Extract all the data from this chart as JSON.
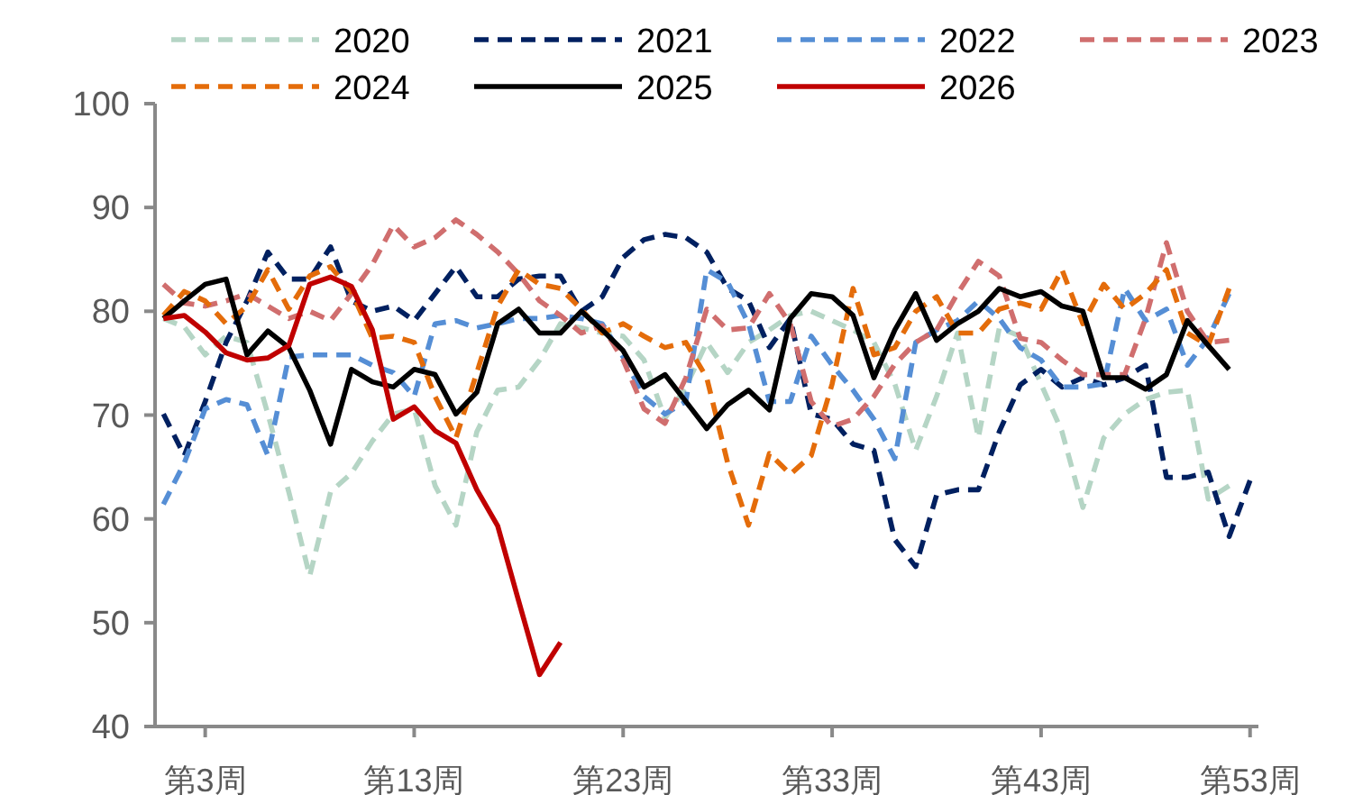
{
  "chart_data": {
    "type": "line",
    "categories": [
      null,
      null,
      "第3周",
      null,
      null,
      null,
      null,
      null,
      null,
      null,
      null,
      null,
      "第13周",
      null,
      null,
      null,
      null,
      null,
      null,
      null,
      null,
      null,
      "第23周",
      null,
      null,
      null,
      null,
      null,
      null,
      null,
      null,
      null,
      "第33周",
      null,
      null,
      null,
      null,
      null,
      null,
      null,
      null,
      null,
      "第43周",
      null,
      null,
      null,
      null,
      null,
      null,
      null,
      null,
      null,
      "第53周"
    ],
    "ylim": [
      40,
      100
    ],
    "yticks": [
      40,
      50,
      60,
      70,
      80,
      90,
      100
    ],
    "legend": "top",
    "series": [
      {
        "name": "2020",
        "color": "#b5d5c5",
        "line_style": "dashed",
        "values": [
          79.3,
          78.5,
          75.8,
          77.6,
          77.0,
          70.1,
          62.6,
          54.5,
          62.6,
          64.4,
          67.5,
          70.1,
          70.6,
          63.2,
          59.4,
          68.4,
          72.4,
          72.7,
          75.3,
          78.8,
          78.4,
          77.9,
          77.6,
          75.3,
          69.7,
          72.7,
          77.0,
          74.1,
          77.0,
          78.2,
          79.6,
          80.0,
          79.1,
          78.2,
          77.0,
          73.0,
          66.6,
          71.8,
          77.9,
          67.8,
          78.4,
          77.6,
          73.0,
          68.4,
          61.1,
          67.8,
          70.1,
          71.5,
          72.2,
          72.4,
          61.9,
          63.2,
          null
        ]
      },
      {
        "name": "2021",
        "color": "#002060",
        "line_style": "dashed",
        "values": [
          70.1,
          66.1,
          71.3,
          77.0,
          81.0,
          85.7,
          83.1,
          83.1,
          86.2,
          81.0,
          80.0,
          80.5,
          79.1,
          81.7,
          84.3,
          81.4,
          81.4,
          83.1,
          83.4,
          83.4,
          80.0,
          81.4,
          85.2,
          86.9,
          87.4,
          87.1,
          85.7,
          82.2,
          81.0,
          76.5,
          79.3,
          70.1,
          69.6,
          67.2,
          66.6,
          58.0,
          55.4,
          62.3,
          62.8,
          62.8,
          68.4,
          72.9,
          74.4,
          72.7,
          73.6,
          72.9,
          73.6,
          74.8,
          64.0,
          64.0,
          64.5,
          58.3,
          63.7
        ]
      },
      {
        "name": "2022",
        "color": "#558ed5",
        "line_style": "dashed",
        "values": [
          61.4,
          65.4,
          70.6,
          71.5,
          71.0,
          66.1,
          75.6,
          75.8,
          75.8,
          75.8,
          74.8,
          74.1,
          71.8,
          78.8,
          79.1,
          78.4,
          78.8,
          79.3,
          79.3,
          79.6,
          79.3,
          78.8,
          75.6,
          71.8,
          70.1,
          71.3,
          84.0,
          82.8,
          78.8,
          71.3,
          71.3,
          77.6,
          74.8,
          72.4,
          69.6,
          65.8,
          77.0,
          78.2,
          79.1,
          81.0,
          79.3,
          76.5,
          75.3,
          72.7,
          72.7,
          73.0,
          82.2,
          79.1,
          80.2,
          74.8,
          77.4,
          81.7,
          null
        ]
      },
      {
        "name": "2023",
        "color": "#d06e6e",
        "line_style": "dashed",
        "values": [
          82.6,
          80.8,
          80.5,
          81.0,
          81.7,
          80.5,
          79.3,
          80.0,
          79.1,
          81.7,
          84.5,
          88.3,
          86.2,
          87.1,
          88.8,
          87.4,
          85.7,
          83.6,
          81.0,
          79.6,
          77.9,
          78.6,
          75.3,
          70.6,
          69.2,
          73.6,
          80.2,
          78.2,
          78.4,
          81.7,
          78.8,
          71.3,
          68.9,
          69.6,
          71.8,
          74.9,
          77.0,
          78.2,
          81.7,
          84.8,
          83.4,
          77.4,
          77.0,
          75.3,
          73.9,
          73.9,
          73.9,
          79.3,
          86.6,
          80.0,
          77.0,
          77.2,
          null
        ]
      },
      {
        "name": "2024",
        "color": "#e46c0a",
        "line_style": "dashed",
        "values": [
          79.6,
          81.9,
          81.0,
          78.8,
          80.5,
          84.0,
          80.2,
          83.4,
          84.3,
          81.9,
          77.4,
          77.6,
          77.0,
          71.8,
          67.8,
          74.1,
          80.5,
          84.0,
          82.6,
          82.2,
          80.2,
          77.9,
          78.8,
          77.6,
          76.5,
          77.0,
          73.6,
          65.4,
          59.4,
          66.3,
          64.3,
          66.1,
          73.0,
          82.2,
          75.8,
          76.5,
          80.0,
          81.4,
          77.9,
          77.9,
          80.2,
          80.8,
          80.2,
          84.0,
          78.8,
          82.6,
          80.2,
          81.7,
          84.0,
          77.9,
          76.7,
          82.2,
          null
        ]
      },
      {
        "name": "2025",
        "color": "#000000",
        "line_style": "solid",
        "values": [
          79.3,
          81.0,
          82.6,
          83.1,
          75.8,
          78.1,
          76.5,
          72.4,
          67.2,
          74.4,
          73.2,
          72.7,
          74.4,
          73.9,
          70.1,
          72.2,
          78.8,
          80.2,
          77.9,
          77.9,
          80.0,
          78.2,
          76.2,
          72.7,
          73.9,
          71.3,
          68.7,
          71.0,
          72.4,
          70.5,
          79.3,
          81.7,
          81.4,
          79.6,
          73.6,
          78.2,
          81.7,
          77.2,
          78.8,
          80.0,
          82.2,
          81.4,
          81.9,
          80.5,
          80.0,
          73.6,
          73.6,
          72.5,
          73.9,
          79.1,
          76.7,
          74.4,
          null
        ]
      },
      {
        "name": "2026",
        "color": "#c00000",
        "line_style": "solid",
        "values": [
          79.3,
          79.6,
          78.0,
          76.0,
          75.3,
          75.5,
          76.7,
          82.6,
          83.3,
          82.4,
          78.2,
          69.6,
          70.8,
          68.5,
          67.3,
          62.8,
          59.3,
          52.1,
          45.0,
          48.1,
          null,
          null,
          null,
          null,
          null,
          null,
          null,
          null,
          null,
          null,
          null,
          null,
          null,
          null,
          null,
          null,
          null,
          null,
          null,
          null,
          null,
          null,
          null,
          null,
          null,
          null,
          null,
          null,
          null,
          null,
          null,
          null,
          null
        ]
      }
    ]
  }
}
